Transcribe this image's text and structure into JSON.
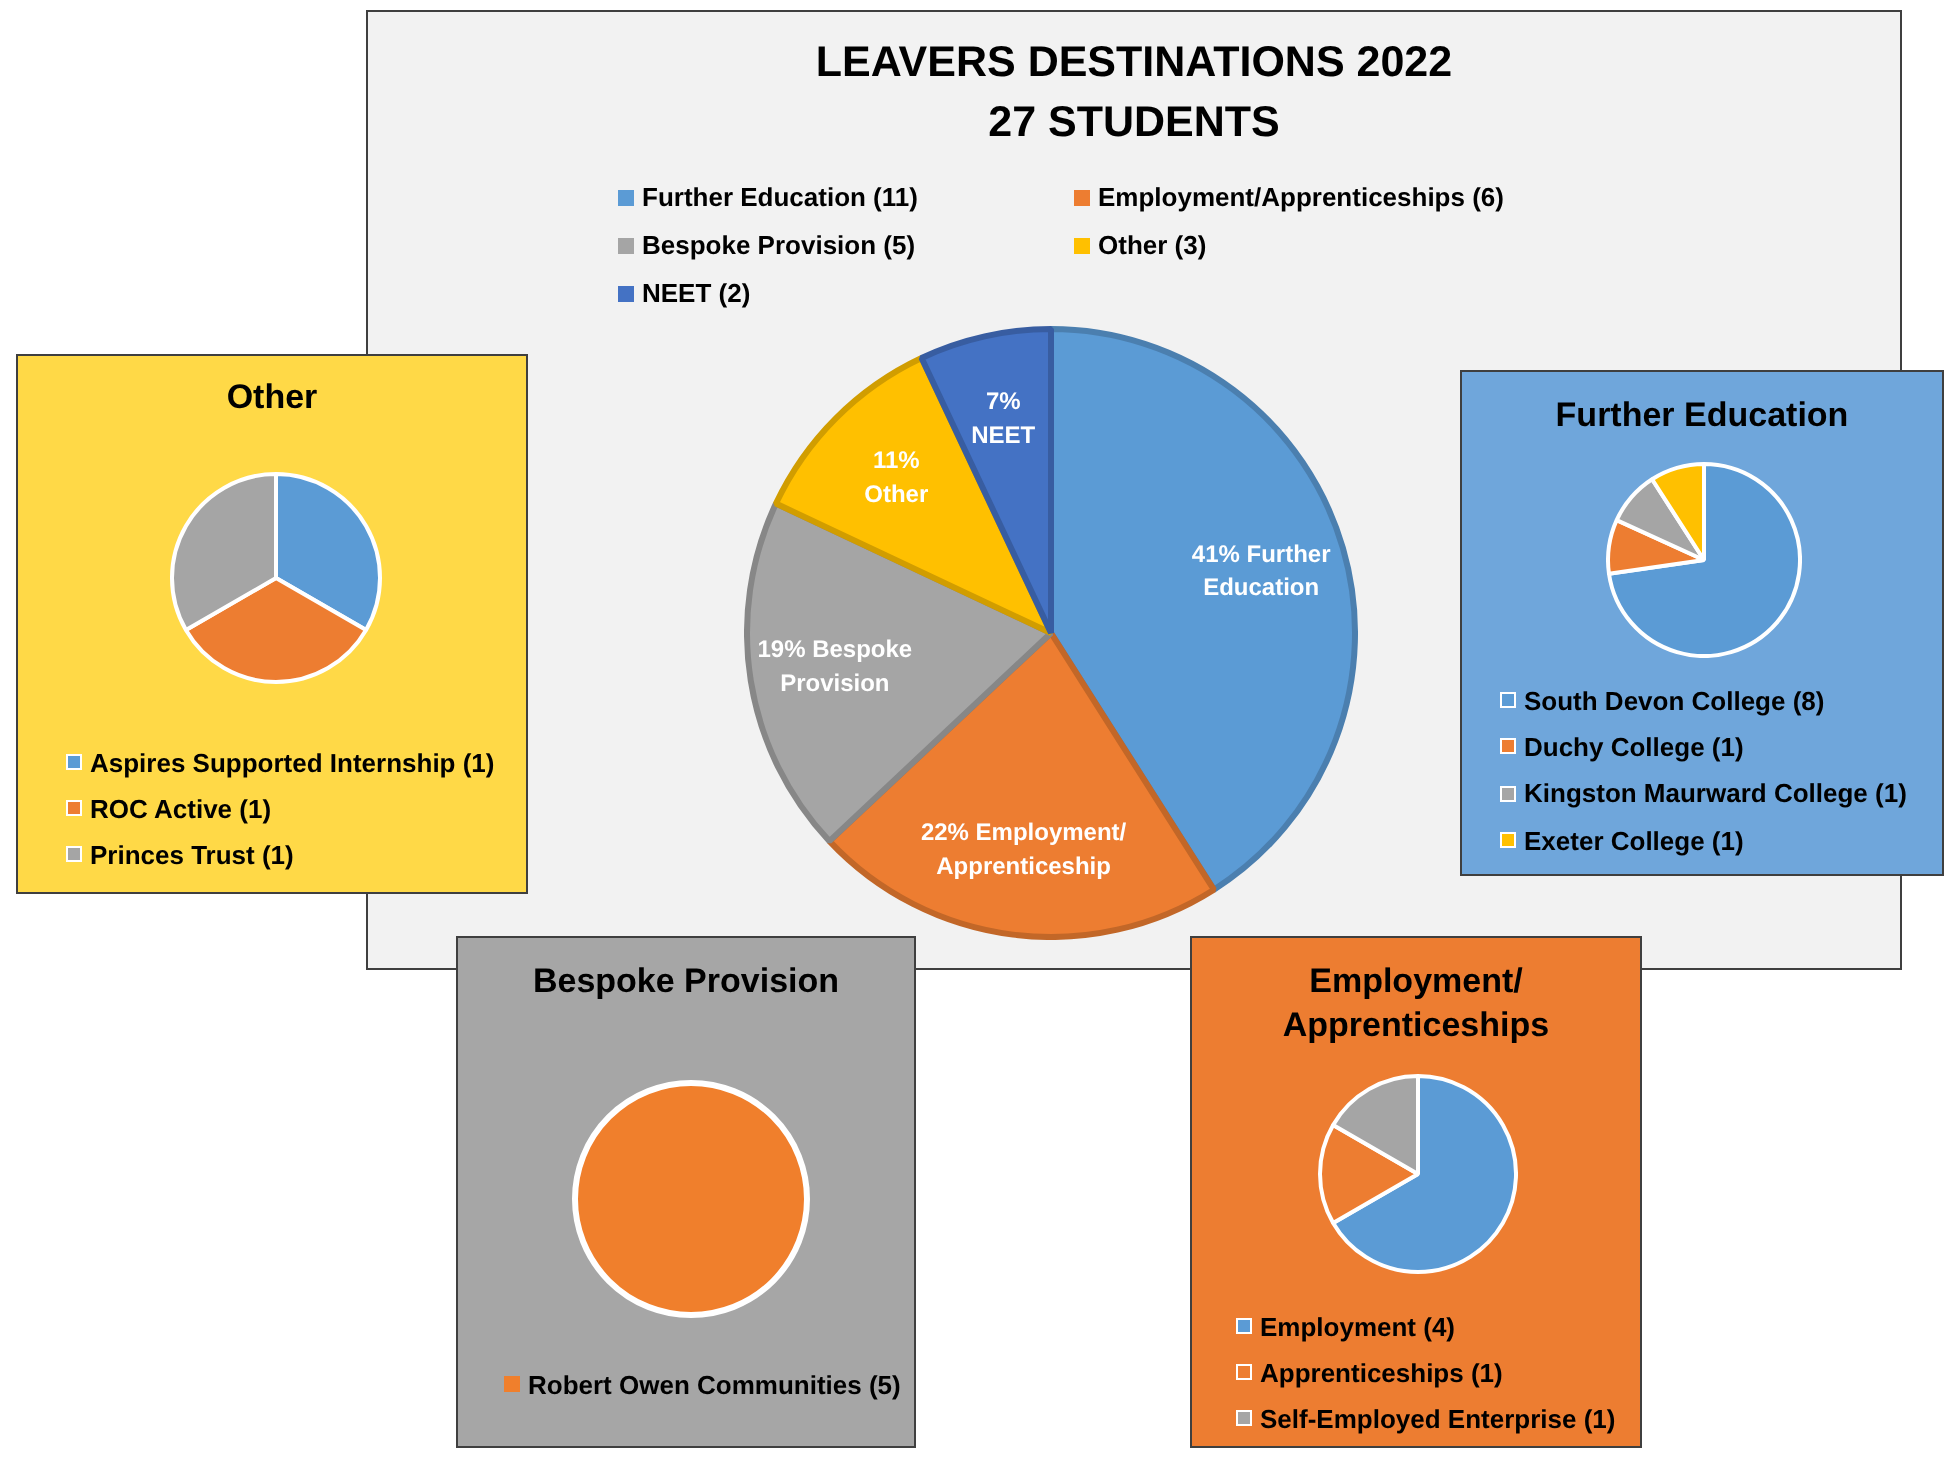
{
  "chart_data": [
    {
      "type": "pie",
      "title": "LEAVERS DESTINATIONS 2022",
      "subtitle": "27 STUDENTS",
      "categories": [
        "Further Education (11)",
        "Employment/Apprenticeships (6)",
        "Bespoke Provision (5)",
        "Other (3)",
        "NEET (2)"
      ],
      "values": [
        41,
        22,
        19,
        11,
        7
      ],
      "colors": [
        "#5b9bd5",
        "#ed7d31",
        "#a5a5a5",
        "#ffc000",
        "#4472c4"
      ],
      "value_labels": [
        "41% Further Education",
        "22% Employment/ Apprenticeship",
        "19% Bespoke Provision",
        "11% Other",
        "7% NEET"
      ],
      "legend": "top"
    },
    {
      "type": "pie",
      "title": "Other",
      "categories": [
        "Aspires Supported Internship (1)",
        "ROC Active (1)",
        "Princes Trust (1)"
      ],
      "values": [
        1,
        1,
        1
      ],
      "colors": [
        "#5b9bd5",
        "#ed7d31",
        "#a5a5a5"
      ],
      "legend": "bottom"
    },
    {
      "type": "pie",
      "title": "Further Education",
      "categories": [
        "South Devon College (8)",
        "Duchy College (1)",
        "Kingston Maurward College (1)",
        "Exeter College (1)"
      ],
      "values": [
        8,
        1,
        1,
        1
      ],
      "colors": [
        "#5b9bd5",
        "#ed7d31",
        "#a5a5a5",
        "#ffc000"
      ],
      "legend": "bottom"
    },
    {
      "type": "pie",
      "title": "Bespoke Provision",
      "categories": [
        "Robert Owen Communities (5)"
      ],
      "values": [
        5
      ],
      "colors": [
        "#f07f2c"
      ],
      "legend": "bottom"
    },
    {
      "type": "pie",
      "title": "Employment/ Apprenticeships",
      "categories": [
        "Employment (4)",
        "Apprenticeships (1)",
        "Self-Employed Enterprise (1)"
      ],
      "values": [
        4,
        1,
        1
      ],
      "colors": [
        "#5b9bd5",
        "#ed7d31",
        "#a5a5a5"
      ],
      "legend": "bottom"
    }
  ]
}
